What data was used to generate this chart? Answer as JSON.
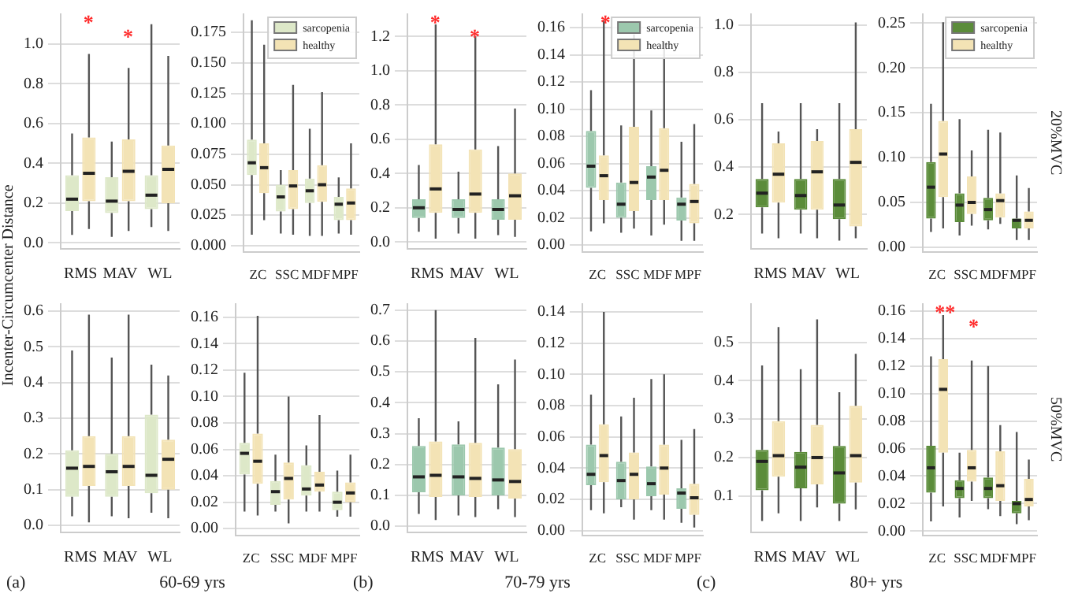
{
  "chart_data": [
    {
      "type": "box",
      "ylabel": "Incenter-Circumcenter Distance",
      "categories": [
        "RMS",
        "MAV",
        "WL"
      ],
      "ylim": [
        -0.03,
        1.15
      ],
      "yticks": [
        {
          "value": 0,
          "label": "0.0"
        },
        0.2,
        0.4,
        0.6,
        0.8,
        {
          "value": 1,
          "label": "1.0"
        }
      ],
      "grid": "y",
      "legend": false,
      "series": [
        {
          "color": "#dde8c8",
          "boxes": [
            {
              "low": 0.04,
              "q1": 0.16,
              "median": 0.22,
              "q3": 0.34,
              "high": 0.55
            },
            {
              "low": 0.03,
              "q1": 0.15,
              "median": 0.21,
              "q3": 0.33,
              "high": 0.51
            },
            {
              "low": 0.08,
              "q1": 0.17,
              "median": 0.24,
              "q3": 0.34,
              "high": 1.1
            }
          ]
        },
        {
          "color": "#f3e3b5",
          "boxes": [
            {
              "low": 0.07,
              "q1": 0.21,
              "median": 0.35,
              "q3": 0.53,
              "high": 0.95
            },
            {
              "low": 0.06,
              "q1": 0.21,
              "median": 0.36,
              "q3": 0.52,
              "high": 0.88
            },
            {
              "low": 0.06,
              "q1": 0.2,
              "median": 0.37,
              "q3": 0.49,
              "high": 0.94
            }
          ]
        }
      ],
      "annotations": [
        "*",
        "*"
      ]
    },
    {
      "type": "box",
      "categories": [
        "ZC",
        "SSC",
        "MDF",
        "MPF"
      ],
      "ylim": [
        -0.005,
        0.19
      ],
      "yticks": [
        {
          "value": 0,
          "label": "0.000"
        },
        {
          "value": 0.025,
          "label": "0.025"
        },
        {
          "value": 0.05,
          "label": "0.050"
        },
        {
          "value": 0.075,
          "label": "0.075"
        },
        {
          "value": 0.1,
          "label": "0.100"
        },
        {
          "value": 0.125,
          "label": "0.125"
        },
        {
          "value": 0.15,
          "label": "0.150"
        },
        {
          "value": 0.175,
          "label": "0.175"
        }
      ],
      "grid": "y",
      "legend": "top right",
      "series": [
        {
          "name": "sarcopenia",
          "color": "#dde8c8",
          "boxes": [
            {
              "low": 0.009,
              "q1": 0.058,
              "median": 0.068,
              "q3": 0.087,
              "high": 0.185
            },
            {
              "low": 0.01,
              "q1": 0.028,
              "median": 0.04,
              "q3": 0.05,
              "high": 0.062
            },
            {
              "low": 0.008,
              "q1": 0.035,
              "median": 0.045,
              "q3": 0.055,
              "high": 0.096
            },
            {
              "low": 0.01,
              "q1": 0.021,
              "median": 0.034,
              "q3": 0.04,
              "high": 0.056
            }
          ]
        },
        {
          "name": "healthy",
          "color": "#f3e3b5",
          "boxes": [
            {
              "low": 0.021,
              "q1": 0.043,
              "median": 0.064,
              "q3": 0.084,
              "high": 0.165
            },
            {
              "low": 0.009,
              "q1": 0.03,
              "median": 0.049,
              "q3": 0.062,
              "high": 0.132
            },
            {
              "low": 0.008,
              "q1": 0.036,
              "median": 0.05,
              "q3": 0.066,
              "high": 0.126
            },
            {
              "low": 0.009,
              "q1": 0.021,
              "median": 0.035,
              "q3": 0.047,
              "high": 0.084
            }
          ]
        }
      ]
    },
    {
      "type": "box",
      "categories": [
        "RMS",
        "MAV",
        "WL"
      ],
      "ylim": [
        -0.04,
        1.33
      ],
      "yticks": [
        {
          "value": 0,
          "label": "0.0"
        },
        0.2,
        0.4,
        0.6,
        0.8,
        {
          "value": 1,
          "label": "1.0"
        },
        1.2
      ],
      "grid": "y",
      "legend": false,
      "series": [
        {
          "color": "#9cc8ad",
          "boxes": [
            {
              "low": 0.06,
              "q1": 0.14,
              "median": 0.2,
              "q3": 0.25,
              "high": 0.45
            },
            {
              "low": 0.05,
              "q1": 0.14,
              "median": 0.19,
              "q3": 0.25,
              "high": 0.41
            },
            {
              "low": 0.04,
              "q1": 0.13,
              "median": 0.19,
              "q3": 0.25,
              "high": 0.56
            }
          ]
        },
        {
          "color": "#f3e3b5",
          "boxes": [
            {
              "low": 0.02,
              "q1": 0.17,
              "median": 0.31,
              "q3": 0.57,
              "high": 1.27
            },
            {
              "low": 0.02,
              "q1": 0.17,
              "median": 0.28,
              "q3": 0.54,
              "high": 1.2
            },
            {
              "low": 0.03,
              "q1": 0.13,
              "median": 0.27,
              "q3": 0.4,
              "high": 0.78
            }
          ]
        }
      ],
      "annotations": [
        "*",
        "*"
      ]
    },
    {
      "type": "box",
      "categories": [
        "ZC",
        "SSC",
        "MDF",
        "MPF"
      ],
      "ylim": [
        -0.005,
        0.17
      ],
      "yticks": [
        {
          "value": 0,
          "label": "0.00"
        },
        0.02,
        0.04,
        0.06,
        0.08,
        {
          "value": 0.1,
          "label": "0.10"
        },
        0.12,
        0.14,
        0.16
      ],
      "grid": "y",
      "legend": "top right",
      "series": [
        {
          "name": "sarcopenia",
          "color": "#9cc8ad",
          "boxes": [
            {
              "low": 0.01,
              "q1": 0.042,
              "median": 0.058,
              "q3": 0.084,
              "high": 0.114
            },
            {
              "low": 0.009,
              "q1": 0.02,
              "median": 0.03,
              "q3": 0.046,
              "high": 0.088
            },
            {
              "low": 0.007,
              "q1": 0.033,
              "median": 0.05,
              "q3": 0.058,
              "high": 0.099
            },
            {
              "low": 0.003,
              "q1": 0.018,
              "median": 0.03,
              "q3": 0.035,
              "high": 0.076
            }
          ]
        },
        {
          "name": "healthy",
          "color": "#f3e3b5",
          "boxes": [
            {
              "low": 0.016,
              "q1": 0.033,
              "median": 0.051,
              "q3": 0.066,
              "high": 0.165
            },
            {
              "low": 0.012,
              "q1": 0.025,
              "median": 0.046,
              "q3": 0.087,
              "high": 0.155
            },
            {
              "low": 0.015,
              "q1": 0.033,
              "median": 0.055,
              "q3": 0.086,
              "high": 0.15
            },
            {
              "low": 0.003,
              "q1": 0.016,
              "median": 0.032,
              "q3": 0.045,
              "high": 0.089
            }
          ]
        }
      ],
      "annotations": [
        "*"
      ]
    },
    {
      "type": "box",
      "categories": [
        "RMS",
        "MAV",
        "WL"
      ],
      "ylim": [
        0.055,
        1.045
      ],
      "yticks": [
        0.2,
        0.4,
        0.6,
        0.8,
        {
          "value": 1,
          "label": "1.0"
        }
      ],
      "grid": "y",
      "legend": false,
      "series": [
        {
          "color": "#5b8c3a",
          "boxes": [
            {
              "low": 0.12,
              "q1": 0.23,
              "median": 0.29,
              "q3": 0.35,
              "high": 0.67
            },
            {
              "low": 0.12,
              "q1": 0.22,
              "median": 0.28,
              "q3": 0.35,
              "high": 0.67
            },
            {
              "low": 0.09,
              "q1": 0.18,
              "median": 0.24,
              "q3": 0.35,
              "high": 0.67
            }
          ]
        },
        {
          "color": "#f3e3b5",
          "boxes": [
            {
              "low": 0.1,
              "q1": 0.25,
              "median": 0.37,
              "q3": 0.5,
              "high": 0.55
            },
            {
              "low": 0.1,
              "q1": 0.22,
              "median": 0.38,
              "q3": 0.51,
              "high": 0.56
            },
            {
              "low": 0.1,
              "q1": 0.15,
              "median": 0.42,
              "q3": 0.56,
              "high": 1.01
            }
          ]
        }
      ]
    },
    {
      "type": "box",
      "categories": [
        "ZC",
        "SSC",
        "MDF",
        "MPF"
      ],
      "ylim": [
        -0.005,
        0.26
      ],
      "yticks": [
        {
          "value": 0,
          "label": "0.00"
        },
        0.05,
        {
          "value": 0.1,
          "label": "0.10"
        },
        0.15,
        {
          "value": 0.2,
          "label": "0.20"
        },
        0.25
      ],
      "grid": "y",
      "legend": "top right",
      "y2label": "20%MVC",
      "series": [
        {
          "name": "sarcopenia",
          "color": "#5b8c3a",
          "boxes": [
            {
              "low": 0.017,
              "q1": 0.032,
              "median": 0.067,
              "q3": 0.095,
              "high": 0.16
            },
            {
              "low": 0.013,
              "q1": 0.028,
              "median": 0.047,
              "q3": 0.06,
              "high": 0.143
            },
            {
              "low": 0.02,
              "q1": 0.03,
              "median": 0.042,
              "q3": 0.055,
              "high": 0.131
            },
            {
              "low": 0.008,
              "q1": 0.021,
              "median": 0.03,
              "q3": 0.032,
              "high": 0.08
            }
          ]
        },
        {
          "name": "healthy",
          "color": "#f3e3b5",
          "boxes": [
            {
              "low": 0.021,
              "q1": 0.056,
              "median": 0.104,
              "q3": 0.141,
              "high": 0.251
            },
            {
              "low": 0.024,
              "q1": 0.037,
              "median": 0.05,
              "q3": 0.079,
              "high": 0.108
            },
            {
              "low": 0.026,
              "q1": 0.033,
              "median": 0.052,
              "q3": 0.06,
              "high": 0.128
            },
            {
              "low": 0.008,
              "q1": 0.021,
              "median": 0.03,
              "q3": 0.04,
              "high": 0.066
            }
          ]
        }
      ]
    },
    {
      "type": "box",
      "categories": [
        "RMS",
        "MAV",
        "WL"
      ],
      "ylim": [
        -0.02,
        0.62
      ],
      "yticks": [
        {
          "value": 0,
          "label": "0.0"
        },
        0.1,
        0.2,
        0.3,
        0.4,
        0.5,
        0.6
      ],
      "grid": "y",
      "legend": false,
      "xlabel": "60-69 yrs",
      "annotations": [
        "(a)"
      ],
      "series": [
        {
          "color": "#dde8c8",
          "boxes": [
            {
              "low": 0.025,
              "q1": 0.08,
              "median": 0.16,
              "q3": 0.21,
              "high": 0.49
            },
            {
              "low": 0.025,
              "q1": 0.08,
              "median": 0.15,
              "q3": 0.2,
              "high": 0.47
            },
            {
              "low": 0.035,
              "q1": 0.09,
              "median": 0.14,
              "q3": 0.31,
              "high": 0.45
            }
          ]
        },
        {
          "color": "#f3e3b5",
          "boxes": [
            {
              "low": 0.008,
              "q1": 0.11,
              "median": 0.165,
              "q3": 0.25,
              "high": 0.59
            },
            {
              "low": 0.02,
              "q1": 0.11,
              "median": 0.165,
              "q3": 0.25,
              "high": 0.59
            },
            {
              "low": 0.02,
              "q1": 0.1,
              "median": 0.185,
              "q3": 0.24,
              "high": 0.42
            }
          ]
        }
      ]
    },
    {
      "type": "box",
      "categories": [
        "ZC",
        "SSC",
        "MDF",
        "MPF"
      ],
      "ylim": [
        -0.005,
        0.17
      ],
      "yticks": [
        {
          "value": 0,
          "label": "0.00"
        },
        0.02,
        0.04,
        0.06,
        0.08,
        {
          "value": 0.1,
          "label": "0.10"
        },
        0.12,
        0.14,
        0.16
      ],
      "grid": "y",
      "legend": false,
      "series": [
        {
          "color": "#dde8c8",
          "boxes": [
            {
              "low": 0.013,
              "q1": 0.041,
              "median": 0.057,
              "q3": 0.065,
              "high": 0.118
            },
            {
              "low": 0.013,
              "q1": 0.018,
              "median": 0.028,
              "q3": 0.036,
              "high": 0.056
            },
            {
              "low": 0.013,
              "q1": 0.025,
              "median": 0.03,
              "q3": 0.048,
              "high": 0.063
            },
            {
              "low": 0.009,
              "q1": 0.014,
              "median": 0.02,
              "q3": 0.028,
              "high": 0.044
            }
          ]
        },
        {
          "color": "#f3e3b5",
          "boxes": [
            {
              "low": 0.01,
              "q1": 0.034,
              "median": 0.051,
              "q3": 0.072,
              "high": 0.161
            },
            {
              "low": 0.004,
              "q1": 0.022,
              "median": 0.038,
              "q3": 0.05,
              "high": 0.1
            },
            {
              "low": 0.013,
              "q1": 0.028,
              "median": 0.033,
              "q3": 0.043,
              "high": 0.086
            },
            {
              "low": 0.009,
              "q1": 0.02,
              "median": 0.027,
              "q3": 0.035,
              "high": 0.056
            }
          ]
        }
      ]
    },
    {
      "type": "box",
      "categories": [
        "RMS",
        "MAV",
        "WL"
      ],
      "ylim": [
        -0.02,
        0.72
      ],
      "yticks": [
        {
          "value": 0,
          "label": "0.0"
        },
        0.1,
        0.2,
        0.3,
        0.4,
        0.5,
        0.6,
        0.7
      ],
      "grid": "y",
      "legend": false,
      "xlabel": "70-79 yrs",
      "annotations": [
        "(b)"
      ],
      "series": [
        {
          "color": "#9cc8ad",
          "boxes": [
            {
              "low": 0.04,
              "q1": 0.11,
              "median": 0.16,
              "q3": 0.26,
              "high": 0.35
            },
            {
              "low": 0.035,
              "q1": 0.1,
              "median": 0.16,
              "q3": 0.265,
              "high": 0.34
            },
            {
              "low": 0.055,
              "q1": 0.1,
              "median": 0.15,
              "q3": 0.255,
              "high": 0.46
            }
          ]
        },
        {
          "color": "#f3e3b5",
          "boxes": [
            {
              "low": 0.02,
              "q1": 0.095,
              "median": 0.165,
              "q3": 0.275,
              "high": 0.7
            },
            {
              "low": 0.03,
              "q1": 0.095,
              "median": 0.155,
              "q3": 0.27,
              "high": 0.61
            },
            {
              "low": 0.03,
              "q1": 0.09,
              "median": 0.145,
              "q3": 0.25,
              "high": 0.54
            }
          ]
        }
      ]
    },
    {
      "type": "box",
      "categories": [
        "ZC",
        "SSC",
        "MDF",
        "MPF"
      ],
      "ylim": [
        -0.003,
        0.145
      ],
      "yticks": [
        {
          "value": 0,
          "label": "0.00"
        },
        0.02,
        0.04,
        0.06,
        0.08,
        {
          "value": 0.1,
          "label": "0.10"
        },
        0.12,
        0.14
      ],
      "grid": "y",
      "legend": false,
      "series": [
        {
          "color": "#9cc8ad",
          "boxes": [
            {
              "low": 0.013,
              "q1": 0.029,
              "median": 0.036,
              "q3": 0.055,
              "high": 0.087
            },
            {
              "low": 0.015,
              "q1": 0.02,
              "median": 0.032,
              "q3": 0.044,
              "high": 0.073
            },
            {
              "low": 0.013,
              "q1": 0.022,
              "median": 0.03,
              "q3": 0.041,
              "high": 0.097
            },
            {
              "low": 0.005,
              "q1": 0.014,
              "median": 0.024,
              "q3": 0.027,
              "high": 0.058
            }
          ]
        },
        {
          "color": "#f3e3b5",
          "boxes": [
            {
              "low": 0.011,
              "q1": 0.031,
              "median": 0.048,
              "q3": 0.068,
              "high": 0.14
            },
            {
              "low": 0.007,
              "q1": 0.02,
              "median": 0.036,
              "q3": 0.05,
              "high": 0.085
            },
            {
              "low": 0.007,
              "q1": 0.023,
              "median": 0.04,
              "q3": 0.055,
              "high": 0.1
            },
            {
              "low": 0.002,
              "q1": 0.01,
              "median": 0.021,
              "q3": 0.03,
              "high": 0.065
            }
          ]
        }
      ]
    },
    {
      "type": "box",
      "categories": [
        "RMS",
        "MAV",
        "WL"
      ],
      "ylim": [
        0.005,
        0.6
      ],
      "yticks": [
        0.1,
        0.2,
        0.3,
        0.4,
        0.5
      ],
      "grid": "y",
      "legend": false,
      "xlabel": "80+ yrs",
      "annotations": [
        "(c)"
      ],
      "series": [
        {
          "color": "#5b8c3a",
          "boxes": [
            {
              "low": 0.035,
              "q1": 0.115,
              "median": 0.19,
              "q3": 0.22,
              "high": 0.44
            },
            {
              "low": 0.035,
              "q1": 0.12,
              "median": 0.175,
              "q3": 0.215,
              "high": 0.43
            },
            {
              "low": 0.035,
              "q1": 0.08,
              "median": 0.16,
              "q3": 0.23,
              "high": 0.37
            }
          ]
        },
        {
          "color": "#f3e3b5",
          "boxes": [
            {
              "low": 0.055,
              "q1": 0.15,
              "median": 0.205,
              "q3": 0.295,
              "high": 0.54
            },
            {
              "low": 0.07,
              "q1": 0.13,
              "median": 0.2,
              "q3": 0.285,
              "high": 0.56
            },
            {
              "low": 0.065,
              "q1": 0.135,
              "median": 0.205,
              "q3": 0.335,
              "high": 0.47
            }
          ]
        }
      ]
    },
    {
      "type": "box",
      "categories": [
        "ZC",
        "SSC",
        "MDF",
        "MPF"
      ],
      "ylim": [
        -0.003,
        0.165
      ],
      "yticks": [
        {
          "value": 0,
          "label": "0.00"
        },
        0.02,
        0.04,
        0.06,
        0.08,
        {
          "value": 0.1,
          "label": "0.10"
        },
        0.12,
        0.14,
        0.16
      ],
      "grid": "y",
      "legend": false,
      "y2label": "50%MVC",
      "series": [
        {
          "color": "#5b8c3a",
          "boxes": [
            {
              "low": 0.007,
              "q1": 0.028,
              "median": 0.046,
              "q3": 0.062,
              "high": 0.127
            },
            {
              "low": 0.01,
              "q1": 0.024,
              "median": 0.031,
              "q3": 0.037,
              "high": 0.057
            },
            {
              "low": 0.016,
              "q1": 0.024,
              "median": 0.031,
              "q3": 0.039,
              "high": 0.12
            },
            {
              "low": 0.005,
              "q1": 0.013,
              "median": 0.02,
              "q3": 0.022,
              "high": 0.072
            }
          ]
        },
        {
          "color": "#f3e3b5",
          "boxes": [
            {
              "low": 0.018,
              "q1": 0.057,
              "median": 0.103,
              "q3": 0.125,
              "high": 0.157
            },
            {
              "low": 0.022,
              "q1": 0.036,
              "median": 0.046,
              "q3": 0.059,
              "high": 0.124
            },
            {
              "low": 0.011,
              "q1": 0.022,
              "median": 0.033,
              "q3": 0.058,
              "high": 0.077
            },
            {
              "low": 0.008,
              "q1": 0.018,
              "median": 0.023,
              "q3": 0.038,
              "high": 0.052
            }
          ]
        }
      ],
      "annotations": [
        "**",
        "*"
      ]
    }
  ]
}
